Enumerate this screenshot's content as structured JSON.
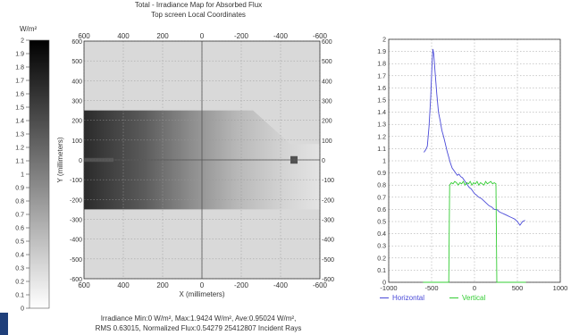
{
  "title": "Total - Irradiance Map for Absorbed Flux",
  "subtitle": "Top screen    Local Coordinates",
  "footer_line1": "Irradiance Min:0 W/m², Max:1.9424 W/m², Ave:0.95024 W/m²,",
  "footer_line2": "RMS 0.63015, Normalized Flux:0.54279  25412807 Incident Rays",
  "colorbar": {
    "unit": "W/m²",
    "ticks": [
      "2",
      "1.9",
      "1.8",
      "1.7",
      "1.6",
      "1.5",
      "1.4",
      "1.3",
      "1.2",
      "1.1",
      "1",
      "0.9",
      "0.8",
      "0.7",
      "0.6",
      "0.5",
      "0.4",
      "0.3",
      "0.2",
      "0.1",
      "0"
    ],
    "color_high": "#000000",
    "color_low": "#ffffff"
  },
  "chart_data": [
    {
      "type": "heatmap",
      "title": "Total - Irradiance Map for Absorbed Flux",
      "subtitle": "Top screen    Local Coordinates",
      "xlabel": "X (millimeters)",
      "ylabel": "Y (millimeters)",
      "xlim": [
        600,
        -600
      ],
      "ylim": [
        -600,
        600
      ],
      "x_ticks": [
        "600",
        "400",
        "200",
        "0",
        "-200",
        "-400",
        "-600"
      ],
      "y_ticks": [
        "600",
        "500",
        "400",
        "300",
        "200",
        "100",
        "0",
        "-100",
        "-200",
        "-300",
        "-400",
        "-500",
        "-600"
      ],
      "value_range": [
        0,
        2
      ],
      "grid": true,
      "image_region": {
        "x_range": [
          600,
          -600
        ],
        "y_range": [
          -250,
          250
        ],
        "chamfer_upper_right": [
          [
            -260,
            250
          ],
          [
            -450,
            80
          ]
        ],
        "strip_row_y": [
          -10,
          10
        ],
        "peak_x": -490
      }
    },
    {
      "type": "line",
      "xlim": [
        -1000,
        1000
      ],
      "ylim": [
        0,
        2
      ],
      "x_ticks": [
        "-1000",
        "-500",
        "0",
        "500",
        "1000"
      ],
      "y_ticks": [
        "0",
        "0.1",
        "0.2",
        "0.3",
        "0.4",
        "0.5",
        "0.6",
        "0.7",
        "0.8",
        "0.9",
        "1",
        "1.1",
        "1.2",
        "1.3",
        "1.4",
        "1.5",
        "1.6",
        "1.7",
        "1.8",
        "1.9",
        "2"
      ],
      "grid": true,
      "legend": "bottom",
      "series": [
        {
          "name": "Horizontal",
          "color": "#4a4ad8",
          "x": [
            -590,
            -570,
            -550,
            -530,
            -510,
            -495,
            -485,
            -475,
            -460,
            -440,
            -420,
            -400,
            -380,
            -360,
            -340,
            -320,
            -300,
            -280,
            -260,
            -240,
            -220,
            -200,
            -180,
            -160,
            -140,
            -120,
            -100,
            -80,
            -60,
            -40,
            -20,
            0,
            20,
            50,
            80,
            110,
            140,
            170,
            200,
            230,
            260,
            290,
            320,
            350,
            380,
            410,
            440,
            470,
            500,
            530,
            560,
            590
          ],
          "y": [
            1.07,
            1.09,
            1.12,
            1.28,
            1.52,
            1.8,
            1.92,
            1.88,
            1.74,
            1.55,
            1.4,
            1.33,
            1.25,
            1.2,
            1.14,
            1.08,
            1.03,
            0.98,
            0.94,
            0.92,
            0.9,
            0.88,
            0.89,
            0.87,
            0.86,
            0.84,
            0.82,
            0.8,
            0.78,
            0.77,
            0.75,
            0.73,
            0.72,
            0.7,
            0.69,
            0.67,
            0.65,
            0.63,
            0.62,
            0.6,
            0.6,
            0.58,
            0.57,
            0.56,
            0.55,
            0.54,
            0.53,
            0.52,
            0.5,
            0.47,
            0.5,
            0.51
          ]
        },
        {
          "name": "Vertical",
          "color": "#33cc33",
          "x": [
            -600,
            -300,
            -290,
            -270,
            -250,
            -230,
            -210,
            -190,
            -170,
            -150,
            -130,
            -110,
            -90,
            -70,
            -50,
            -30,
            -10,
            10,
            30,
            50,
            70,
            90,
            110,
            130,
            150,
            170,
            190,
            210,
            230,
            250,
            260,
            600
          ],
          "y": [
            0,
            0,
            0.8,
            0.82,
            0.81,
            0.83,
            0.82,
            0.8,
            0.82,
            0.81,
            0.83,
            0.8,
            0.82,
            0.81,
            0.83,
            0.8,
            0.82,
            0.81,
            0.83,
            0.8,
            0.82,
            0.81,
            0.8,
            0.83,
            0.81,
            0.82,
            0.83,
            0.81,
            0.82,
            0.81,
            0,
            0
          ]
        }
      ]
    }
  ]
}
